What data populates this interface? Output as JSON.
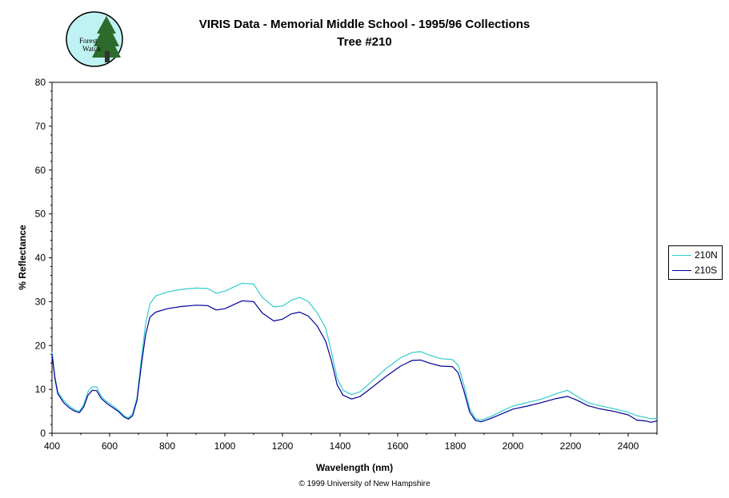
{
  "title_line1": "VIRIS Data - Memorial Middle School - 1995/96 Collections",
  "title_line2": "Tree #210",
  "footer": "© 1999 University of New Hampshire",
  "logo_text": [
    "Forest",
    "Watch"
  ],
  "colors": {
    "series_210N": "#33CCCC",
    "series_210S": "#000099",
    "logo_bg": "#bff2f2",
    "logo_tree": "#2d6b2d"
  },
  "chart_data": {
    "type": "line",
    "title": "VIRIS Data - Memorial Middle School - 1995/96 Collections\nTree #210",
    "xlabel": "Wavelength (nm)",
    "ylabel": "% Reflectance",
    "xlim": [
      400,
      2500
    ],
    "ylim": [
      0,
      80
    ],
    "xticks": [
      400,
      600,
      800,
      1000,
      1200,
      1400,
      1600,
      1800,
      2000,
      2200,
      2400
    ],
    "yticks": [
      0,
      10,
      20,
      30,
      40,
      50,
      60,
      70,
      80
    ],
    "legend": "right",
    "grid": false,
    "series": [
      {
        "name": "210N",
        "color": "#33CCCC",
        "points": [
          [
            400,
            18.5
          ],
          [
            410,
            13
          ],
          [
            420,
            9.5
          ],
          [
            440,
            7.5
          ],
          [
            460,
            6.2
          ],
          [
            480,
            5.3
          ],
          [
            495,
            5.0
          ],
          [
            510,
            6.5
          ],
          [
            525,
            9.5
          ],
          [
            540,
            10.6
          ],
          [
            555,
            10.5
          ],
          [
            570,
            8.5
          ],
          [
            590,
            7.2
          ],
          [
            610,
            6.3
          ],
          [
            630,
            5.3
          ],
          [
            650,
            4.0
          ],
          [
            665,
            3.5
          ],
          [
            680,
            4.5
          ],
          [
            695,
            8
          ],
          [
            710,
            17
          ],
          [
            725,
            25
          ],
          [
            740,
            29.5
          ],
          [
            760,
            31.3
          ],
          [
            800,
            32.2
          ],
          [
            850,
            32.8
          ],
          [
            900,
            33.1
          ],
          [
            940,
            33.0
          ],
          [
            970,
            31.9
          ],
          [
            1000,
            32.4
          ],
          [
            1040,
            33.6
          ],
          [
            1060,
            34.2
          ],
          [
            1100,
            34.0
          ],
          [
            1130,
            31.0
          ],
          [
            1170,
            28.8
          ],
          [
            1200,
            29.0
          ],
          [
            1230,
            30.3
          ],
          [
            1260,
            31.0
          ],
          [
            1290,
            30.0
          ],
          [
            1320,
            27.5
          ],
          [
            1350,
            24.0
          ],
          [
            1370,
            18.5
          ],
          [
            1390,
            12.5
          ],
          [
            1410,
            9.8
          ],
          [
            1440,
            8.8
          ],
          [
            1470,
            9.5
          ],
          [
            1510,
            11.8
          ],
          [
            1560,
            14.8
          ],
          [
            1610,
            17.2
          ],
          [
            1650,
            18.4
          ],
          [
            1680,
            18.6
          ],
          [
            1710,
            17.8
          ],
          [
            1750,
            17.0
          ],
          [
            1790,
            16.8
          ],
          [
            1810,
            15.5
          ],
          [
            1830,
            11.0
          ],
          [
            1850,
            5.5
          ],
          [
            1870,
            3.3
          ],
          [
            1890,
            3.0
          ],
          [
            1920,
            3.7
          ],
          [
            1960,
            5.0
          ],
          [
            2000,
            6.2
          ],
          [
            2050,
            7.0
          ],
          [
            2100,
            7.8
          ],
          [
            2150,
            9.0
          ],
          [
            2190,
            9.8
          ],
          [
            2220,
            8.5
          ],
          [
            2260,
            7.0
          ],
          [
            2300,
            6.3
          ],
          [
            2350,
            5.6
          ],
          [
            2400,
            4.8
          ],
          [
            2430,
            4.0
          ],
          [
            2460,
            3.6
          ],
          [
            2480,
            3.3
          ],
          [
            2500,
            3.4
          ]
        ]
      },
      {
        "name": "210S",
        "color": "#000099",
        "points": [
          [
            400,
            18
          ],
          [
            410,
            12.5
          ],
          [
            420,
            9
          ],
          [
            440,
            7.0
          ],
          [
            460,
            5.8
          ],
          [
            480,
            5.0
          ],
          [
            495,
            4.7
          ],
          [
            510,
            6.0
          ],
          [
            525,
            8.7
          ],
          [
            540,
            9.8
          ],
          [
            555,
            9.7
          ],
          [
            570,
            8.0
          ],
          [
            590,
            6.8
          ],
          [
            610,
            5.9
          ],
          [
            630,
            5.0
          ],
          [
            650,
            3.7
          ],
          [
            665,
            3.2
          ],
          [
            680,
            4.0
          ],
          [
            695,
            7.5
          ],
          [
            710,
            15.5
          ],
          [
            725,
            22.5
          ],
          [
            740,
            26.5
          ],
          [
            760,
            27.6
          ],
          [
            800,
            28.4
          ],
          [
            850,
            28.9
          ],
          [
            900,
            29.2
          ],
          [
            940,
            29.1
          ],
          [
            970,
            28.1
          ],
          [
            1000,
            28.4
          ],
          [
            1040,
            29.6
          ],
          [
            1060,
            30.2
          ],
          [
            1100,
            30.0
          ],
          [
            1130,
            27.4
          ],
          [
            1170,
            25.6
          ],
          [
            1200,
            26.0
          ],
          [
            1230,
            27.2
          ],
          [
            1260,
            27.6
          ],
          [
            1290,
            26.7
          ],
          [
            1320,
            24.5
          ],
          [
            1350,
            21.0
          ],
          [
            1370,
            16.5
          ],
          [
            1390,
            11.0
          ],
          [
            1410,
            8.7
          ],
          [
            1440,
            7.8
          ],
          [
            1470,
            8.4
          ],
          [
            1510,
            10.4
          ],
          [
            1560,
            13.0
          ],
          [
            1610,
            15.3
          ],
          [
            1650,
            16.6
          ],
          [
            1680,
            16.7
          ],
          [
            1710,
            16.0
          ],
          [
            1750,
            15.3
          ],
          [
            1790,
            15.2
          ],
          [
            1810,
            13.8
          ],
          [
            1830,
            9.6
          ],
          [
            1850,
            4.8
          ],
          [
            1870,
            2.9
          ],
          [
            1890,
            2.6
          ],
          [
            1920,
            3.3
          ],
          [
            1960,
            4.4
          ],
          [
            2000,
            5.5
          ],
          [
            2050,
            6.2
          ],
          [
            2100,
            7.0
          ],
          [
            2150,
            7.9
          ],
          [
            2190,
            8.4
          ],
          [
            2220,
            7.6
          ],
          [
            2260,
            6.3
          ],
          [
            2300,
            5.6
          ],
          [
            2350,
            5.0
          ],
          [
            2400,
            4.2
          ],
          [
            2430,
            3.0
          ],
          [
            2460,
            2.8
          ],
          [
            2480,
            2.5
          ],
          [
            2500,
            2.8
          ]
        ]
      }
    ]
  }
}
